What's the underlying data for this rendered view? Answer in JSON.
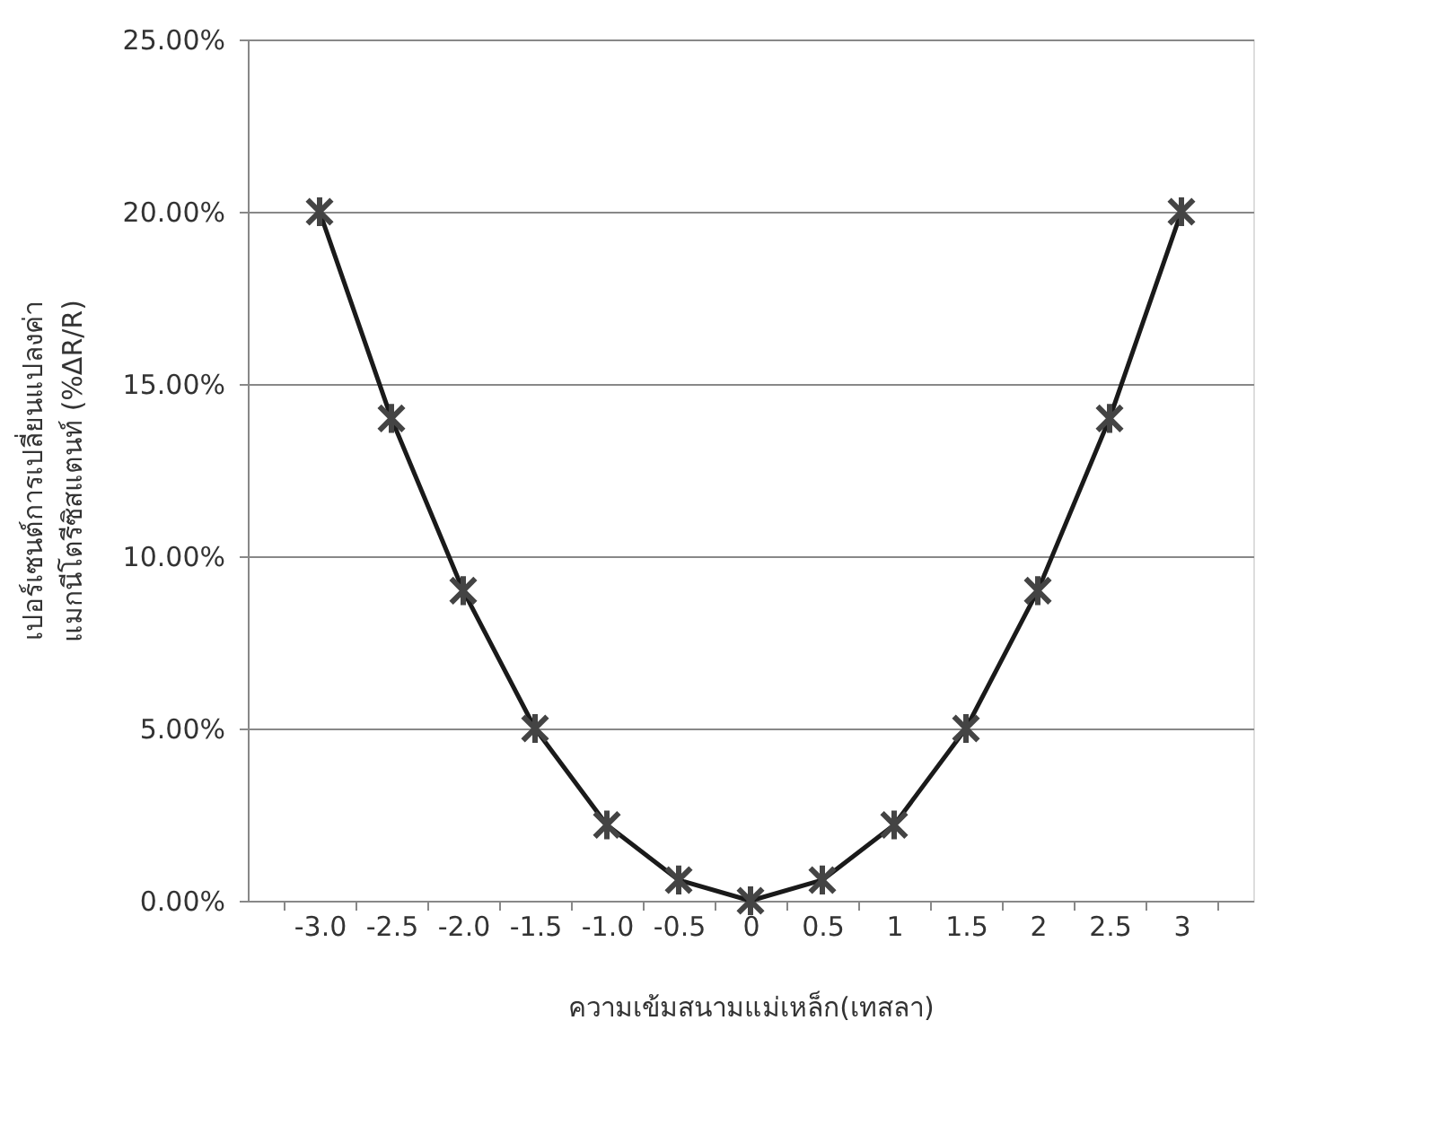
{
  "chart_data": {
    "type": "line",
    "xlabel": "ความเข้มสนามแม่เหล็ก(เทสลา)",
    "ylabel": "เปอร์เซนต์การเปลี่ยนแปลงค่า\nแมกนีโตรีซิสแตนท์ (%ΔR/R)",
    "categories": [
      "-3.0",
      "-2.5",
      "-2.0",
      "-1.5",
      "-1.0",
      "-0.5",
      "0",
      "0.5",
      "1",
      "1.5",
      "2",
      "2.5",
      "3"
    ],
    "series": [
      {
        "color": "#1a1a1a",
        "values": [
          20,
          14,
          9,
          5,
          2.2,
          0.6,
          0,
          0.6,
          2.2,
          5,
          9,
          14,
          20
        ]
      }
    ],
    "ylim": [
      0,
      25
    ],
    "yticks": [
      {
        "value": 0,
        "label": "0.00%"
      },
      {
        "value": 5,
        "label": "5.00%"
      },
      {
        "value": 10,
        "label": "10.00%"
      },
      {
        "value": 15,
        "label": "15.00%"
      },
      {
        "value": 20,
        "label": "20.00%"
      },
      {
        "value": 25,
        "label": "25.00%"
      }
    ],
    "grid": "y",
    "marker": "cross",
    "line_style": "solid"
  }
}
